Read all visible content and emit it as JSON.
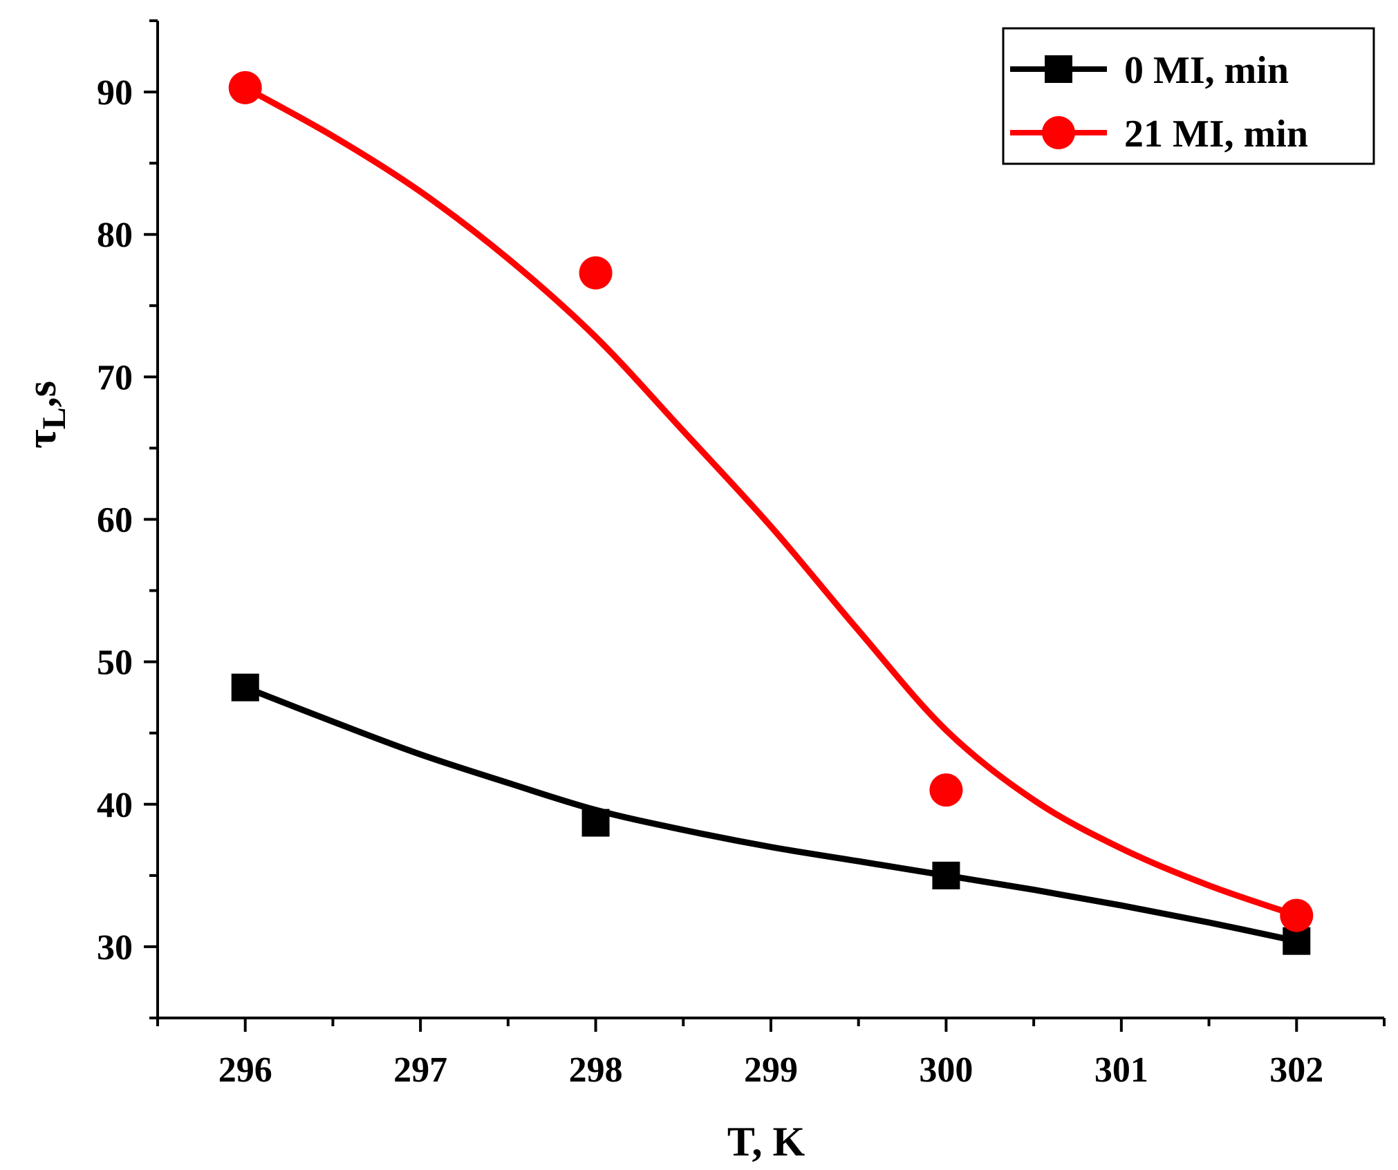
{
  "chart_data": {
    "type": "line",
    "title": "",
    "xlabel": "T, K",
    "ylabel": {
      "main": "τ",
      "sub": "L",
      "suffix": ",s"
    },
    "xlim": [
      295.5,
      302.5
    ],
    "ylim": [
      25,
      95
    ],
    "x_ticks": [
      296,
      297,
      298,
      299,
      300,
      301,
      302
    ],
    "y_ticks": [
      30,
      40,
      50,
      60,
      70,
      80,
      90
    ],
    "legend_position": "top-right",
    "series": [
      {
        "name": "0 MI, min",
        "color": "#000000",
        "marker": "square",
        "x": [
          296,
          298,
          300,
          302
        ],
        "values": [
          48.2,
          38.7,
          35.0,
          30.4
        ],
        "fit_curve": {
          "x": [
            296,
            296.5,
            297,
            297.5,
            298,
            298.5,
            299,
            299.5,
            300,
            300.5,
            301,
            301.5,
            302
          ],
          "values": [
            48.2,
            45.8,
            43.5,
            41.5,
            39.6,
            38.2,
            37.0,
            36.0,
            35.0,
            34.0,
            32.9,
            31.7,
            30.4
          ]
        }
      },
      {
        "name": "21 MI, min",
        "color": "#ff0000",
        "marker": "circle",
        "x": [
          296,
          298,
          300,
          302
        ],
        "values": [
          90.3,
          77.3,
          41.0,
          32.2
        ],
        "fit_curve": {
          "x": [
            296,
            296.5,
            297,
            297.5,
            298,
            298.5,
            299,
            299.5,
            300,
            300.5,
            301,
            301.5,
            302
          ],
          "values": [
            90.3,
            86.9,
            83.0,
            78.3,
            72.8,
            66.2,
            59.5,
            52.2,
            45.2,
            40.3,
            36.9,
            34.3,
            32.2
          ]
        }
      }
    ]
  }
}
